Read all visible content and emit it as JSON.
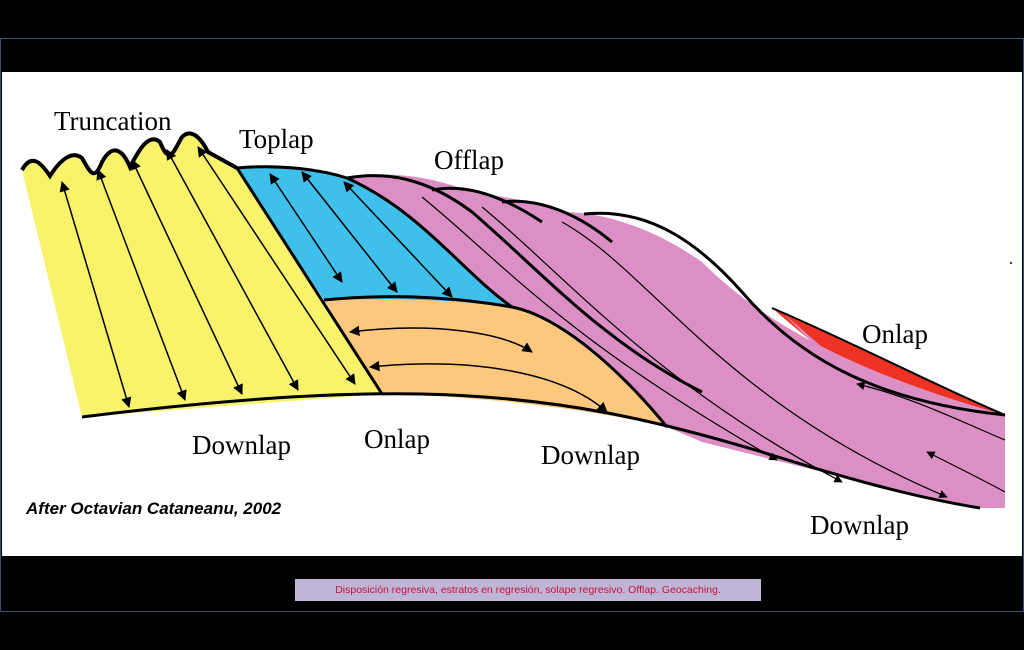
{
  "labels": {
    "truncation": "Truncation",
    "toplap": "Toplap",
    "offlap": "Offlap",
    "onlap_right": "Onlap",
    "downlap_left": "Downlap",
    "onlap_center": "Onlap",
    "downlap_center": "Downlap",
    "downlap_right": "Downlap"
  },
  "credit": "After Octavian Cataneanu, 2002",
  "caption": "Disposición regresiva, estratos en regresión, solape regresivo. Offlap. Geocaching.",
  "colors": {
    "yellow_unit": "#f8f36a",
    "blue_unit": "#3ec0ea",
    "orange_unit": "#fcc87d",
    "pink_unit": "#dc8fc4",
    "red_unit": "#ee3223",
    "caption_bg": "#bfb5d7",
    "caption_text": "#c0143c"
  }
}
